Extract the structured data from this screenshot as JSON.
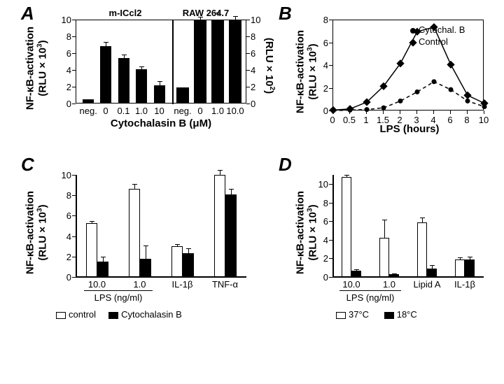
{
  "panelA": {
    "label": "A",
    "type": "bar",
    "title_left": "m-ICcl2",
    "title_right": "RAW 264.7",
    "xlabel": "Cytochalasin B (μM)",
    "ylabel_left": "NF-κB-activation\n(RLU × 10³)",
    "ylabel_right": "(RLU × 10²)",
    "left_categories": [
      "neg.",
      "0",
      "0.1",
      "1.0",
      "10"
    ],
    "left_values": [
      0.5,
      6.8,
      5.4,
      4.1,
      2.2
    ],
    "left_err": [
      0,
      0.5,
      0.4,
      0.3,
      0.5
    ],
    "right_categories": [
      "neg.",
      "0",
      "1.0",
      "10.0"
    ],
    "right_values": [
      1.9,
      10,
      10.4,
      10
    ],
    "right_err": [
      0,
      0.3,
      0.4,
      0.4
    ],
    "left_ylim": [
      0,
      10
    ],
    "right_ylim": [
      0,
      10
    ],
    "left_yticks": [
      0,
      2,
      4,
      6,
      8,
      10
    ],
    "right_yticks": [
      0,
      2,
      4,
      6,
      8,
      10
    ],
    "bar_color": "#000000",
    "plot_border": "#000000",
    "background": "#ffffff"
  },
  "panelB": {
    "label": "B",
    "type": "line",
    "xlabel": "LPS (hours)",
    "ylabel": "NF-κB-activation\n(RLU × 10³)",
    "xticks": [
      0,
      0.5,
      1,
      1.5,
      2,
      3,
      4,
      6,
      8,
      10
    ],
    "yticks": [
      0,
      2,
      4,
      6,
      8
    ],
    "ylim": [
      0,
      8
    ],
    "series": [
      {
        "name": "Control",
        "marker": "diamond",
        "dash": "solid",
        "x": [
          0,
          0.5,
          1,
          1.5,
          2,
          3,
          4,
          6,
          8,
          10
        ],
        "y": [
          0.1,
          0.2,
          0.8,
          2.2,
          4.2,
          7.0,
          7.4,
          4.1,
          1.4,
          0.7
        ]
      },
      {
        "name": "Cytochal. B",
        "marker": "circle",
        "dash": "dashed",
        "x": [
          0,
          0.5,
          1,
          1.5,
          2,
          3,
          4,
          6,
          8,
          10
        ],
        "y": [
          0.05,
          0.1,
          0.15,
          0.3,
          0.9,
          1.7,
          2.6,
          1.9,
          0.9,
          0.4
        ]
      }
    ],
    "legend_items": [
      "Cytochal. B",
      "Control"
    ]
  },
  "panelC": {
    "label": "C",
    "type": "bar",
    "ylabel": "NF-κB-activation\n(RLU × 10³)",
    "yticks": [
      0,
      2,
      4,
      6,
      8,
      10
    ],
    "ylim": [
      0,
      10
    ],
    "groups": [
      "10.0",
      "1.0",
      "IL-1β",
      "TNF-α"
    ],
    "group_underline_label": "LPS (ng/ml)",
    "control_values": [
      5.3,
      8.6,
      3.0,
      10.0
    ],
    "control_err": [
      0.2,
      0.5,
      0.2,
      0.5
    ],
    "cyto_values": [
      1.5,
      1.8,
      2.3,
      8.1
    ],
    "cyto_err": [
      0.5,
      1.3,
      0.5,
      0.5
    ],
    "legend": [
      "control",
      "Cytochalasin B"
    ],
    "colors": {
      "control": "#ffffff",
      "cyto": "#000000"
    }
  },
  "panelD": {
    "label": "D",
    "type": "bar",
    "ylabel": "NF-κB-activation\n(RLU × 10³)",
    "yticks": [
      0,
      2,
      4,
      6,
      8,
      10
    ],
    "ylim": [
      0,
      11
    ],
    "groups": [
      "10.0",
      "1.0",
      "Lipid A",
      "IL-1β"
    ],
    "group_underline_label": "LPS (ng/ml)",
    "v37_values": [
      10.8,
      4.2,
      5.9,
      1.9
    ],
    "v37_err": [
      0.2,
      2.0,
      0.5,
      0.2
    ],
    "v18_values": [
      0.7,
      0.3,
      0.9,
      1.9
    ],
    "v18_err": [
      0.1,
      0.1,
      0.4,
      0.3
    ],
    "legend": [
      "37°C",
      "18°C"
    ],
    "colors": {
      "37": "#ffffff",
      "18": "#000000"
    }
  }
}
